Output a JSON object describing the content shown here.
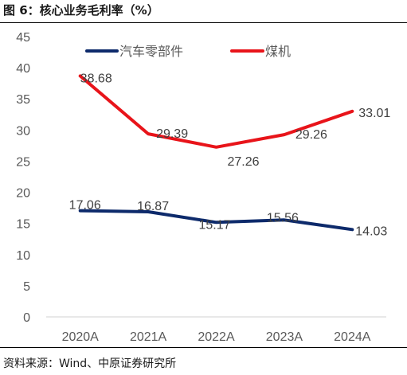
{
  "title": "图 6：核心业务毛利率（%）",
  "source": "资料来源：Wind、中原证券研究所",
  "chart_data": {
    "type": "line",
    "x": [
      "2020A",
      "2021A",
      "2022A",
      "2023A",
      "2024A"
    ],
    "ylim": [
      0,
      45
    ],
    "yticks": [
      0,
      5,
      10,
      15,
      20,
      25,
      30,
      35,
      40,
      45
    ],
    "grid": false,
    "legend_position": "top",
    "series": [
      {
        "name": "汽车零部件",
        "color": "#0d2a6b",
        "values": [
          17.06,
          16.87,
          15.17,
          15.56,
          14.03
        ],
        "labels": [
          "17.06",
          "16.87",
          "15.17",
          "15.56",
          "14.03"
        ]
      },
      {
        "name": "煤机",
        "color": "#e8141a",
        "values": [
          38.68,
          29.39,
          27.26,
          29.26,
          33.01
        ],
        "labels": [
          "38.68",
          "29.39",
          "27.26",
          "29.26",
          "33.01"
        ]
      }
    ]
  }
}
